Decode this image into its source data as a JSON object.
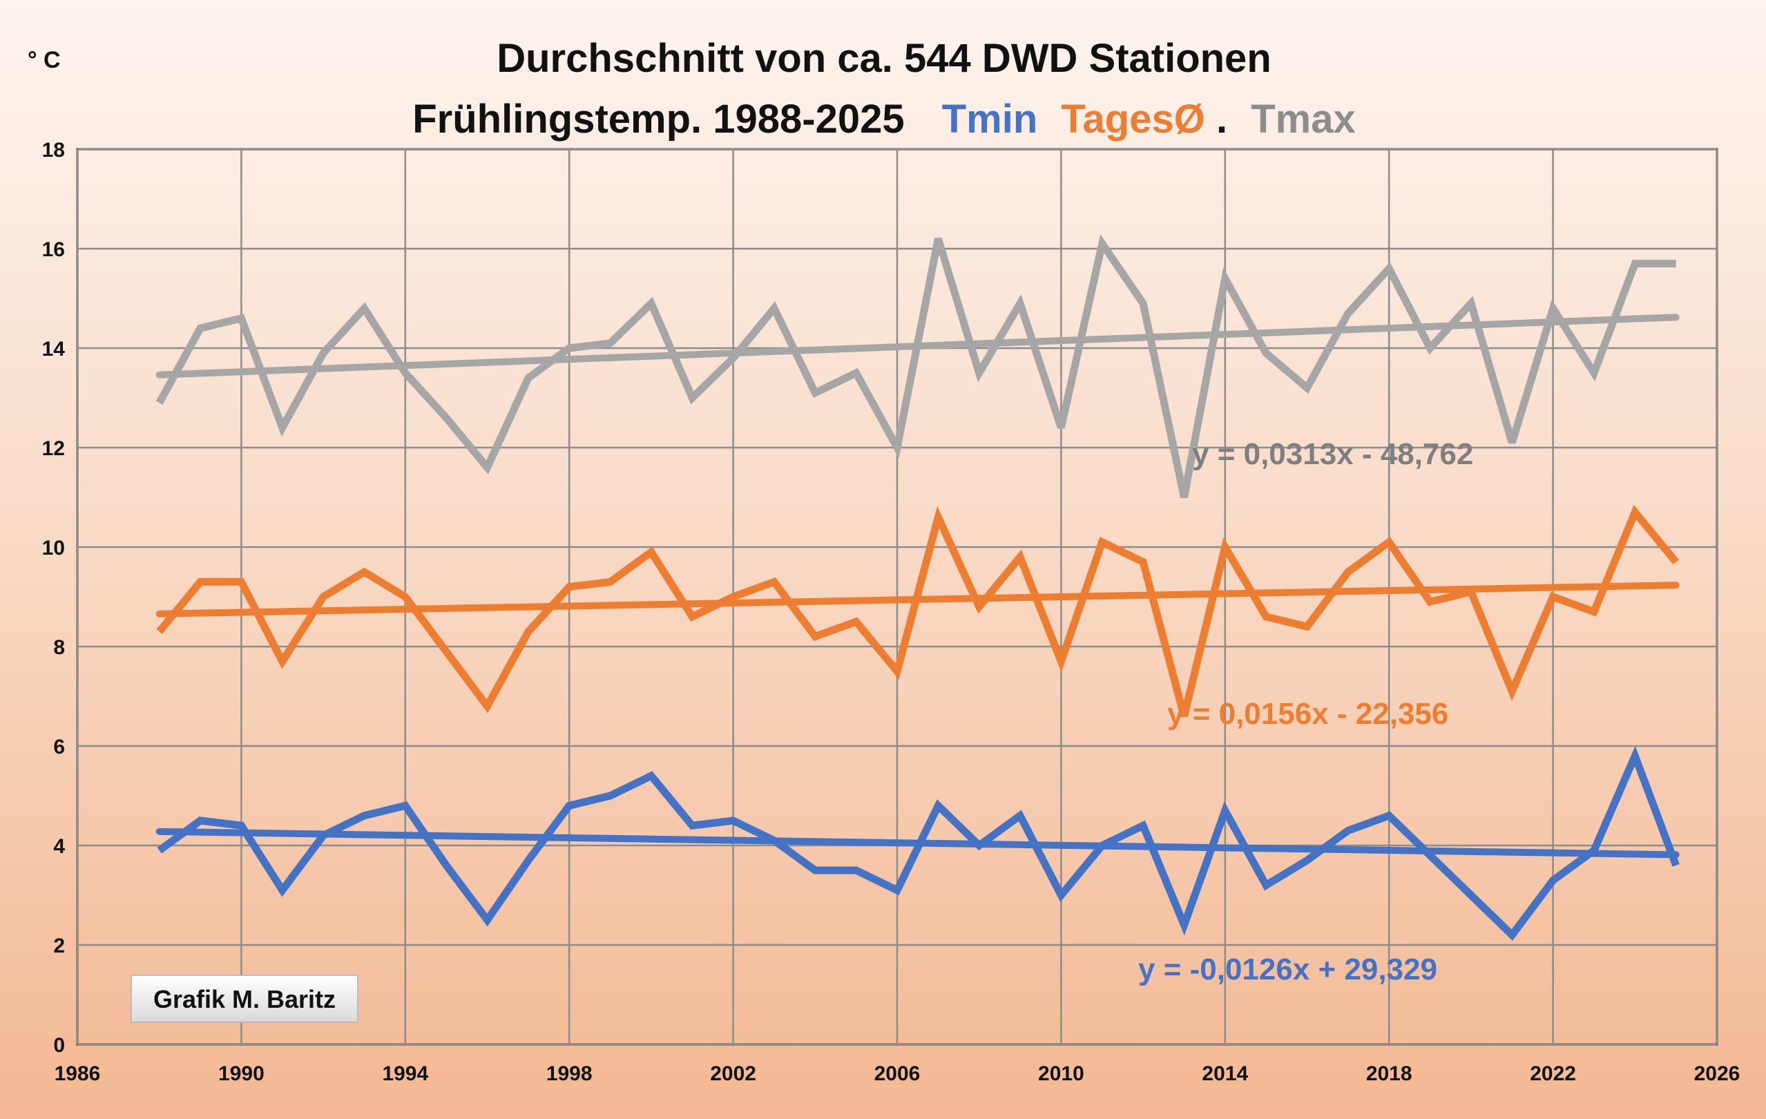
{
  "title_line1": "Durchschnitt von ca. 544 DWD Stationen",
  "title_line2_prefix": "Frühlingstemp. 1988-2025",
  "title_line2_parts": [
    {
      "text": "Tmin",
      "color": "#4472c4"
    },
    {
      "text": "TagesØ",
      "color": "#ed7d31"
    },
    {
      "text": ".",
      "color": "#111111"
    },
    {
      "text": "Tmax",
      "color": "#8c8c8c"
    }
  ],
  "unit_label": "° C",
  "credit": "Grafik M. Baritz",
  "chart_data": {
    "type": "line",
    "title": "Durchschnitt von ca. 544 DWD Stationen / Frühlingstemp. 1988-2025 Tmin TagesØ. Tmax",
    "xlabel": "",
    "ylabel": "° C",
    "xlim": [
      1986,
      2026
    ],
    "ylim": [
      0,
      18
    ],
    "x_ticks": [
      1986,
      1990,
      1994,
      1998,
      2002,
      2006,
      2010,
      2014,
      2018,
      2022,
      2026
    ],
    "y_ticks": [
      0,
      2,
      4,
      6,
      8,
      10,
      12,
      14,
      16,
      18
    ],
    "grid": true,
    "x": [
      1988,
      1989,
      1990,
      1991,
      1992,
      1993,
      1994,
      1995,
      1996,
      1997,
      1998,
      1999,
      2000,
      2001,
      2002,
      2003,
      2004,
      2005,
      2006,
      2007,
      2008,
      2009,
      2010,
      2011,
      2012,
      2013,
      2014,
      2015,
      2016,
      2017,
      2018,
      2019,
      2020,
      2021,
      2022,
      2023,
      2024,
      2025
    ],
    "series": [
      {
        "name": "Tmax",
        "color": "#a6a6a6",
        "values": [
          12.9,
          14.4,
          14.6,
          12.4,
          13.9,
          14.8,
          13.5,
          12.6,
          11.6,
          13.4,
          14.0,
          14.1,
          14.9,
          13.0,
          13.8,
          14.8,
          13.1,
          13.5,
          12.0,
          16.2,
          13.5,
          14.9,
          12.4,
          16.1,
          14.9,
          11.0,
          15.4,
          13.9,
          13.2,
          14.7,
          15.6,
          14.0,
          14.9,
          12.1,
          14.8,
          13.5,
          15.7,
          15.7
        ]
      },
      {
        "name": "TagesØ",
        "color": "#ed7d31",
        "values": [
          8.3,
          9.3,
          9.3,
          7.7,
          9.0,
          9.5,
          9.0,
          7.9,
          6.8,
          8.3,
          9.2,
          9.3,
          9.9,
          8.6,
          9.0,
          9.3,
          8.2,
          8.5,
          7.5,
          10.6,
          8.8,
          9.8,
          7.7,
          10.1,
          9.7,
          6.6,
          10.0,
          8.6,
          8.4,
          9.5,
          10.1,
          8.9,
          9.1,
          7.1,
          9.0,
          8.7,
          10.7,
          9.7
        ]
      },
      {
        "name": "Tmin",
        "color": "#4472c4",
        "values": [
          3.9,
          4.5,
          4.4,
          3.1,
          4.2,
          4.6,
          4.8,
          3.6,
          2.5,
          3.7,
          4.8,
          5.0,
          5.4,
          4.4,
          4.5,
          4.1,
          3.5,
          3.5,
          3.1,
          4.8,
          4.0,
          4.6,
          3.0,
          4.0,
          4.4,
          2.4,
          4.7,
          3.2,
          3.7,
          4.3,
          4.6,
          3.8,
          3.0,
          2.2,
          3.3,
          3.9,
          5.8,
          3.6
        ]
      }
    ],
    "trendlines": [
      {
        "series": "Tmax",
        "slope": 0.0313,
        "intercept": -48.762,
        "label": "y = 0,0313x - 48,762",
        "color": "#a6a6a6",
        "label_color": "#7f7f7f"
      },
      {
        "series": "TagesØ",
        "slope": 0.0156,
        "intercept": -22.356,
        "label": "y = 0,0156x - 22,356",
        "color": "#ed7d31",
        "label_color": "#ed7d31"
      },
      {
        "series": "Tmin",
        "slope": -0.0126,
        "intercept": 29.329,
        "label": "y = -0,0126x + 29,329",
        "color": "#4472c4",
        "label_color": "#4472c4"
      }
    ]
  }
}
